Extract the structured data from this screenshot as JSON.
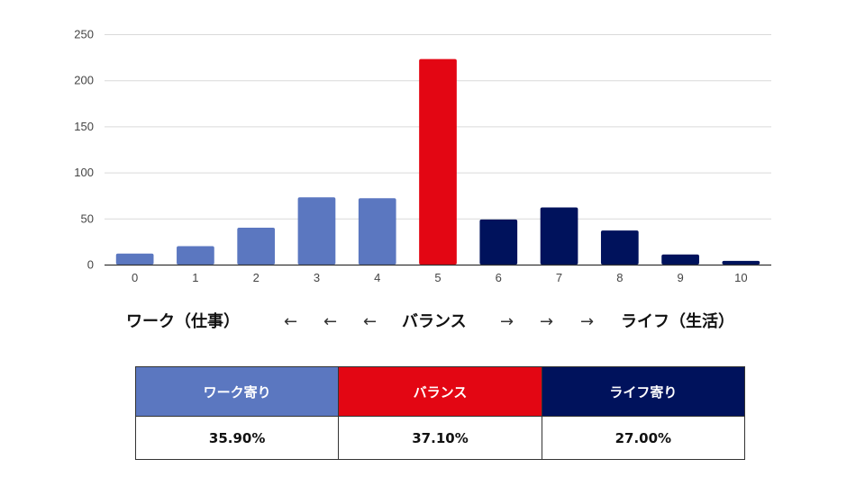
{
  "chart_data": {
    "type": "bar",
    "categories": [
      "0",
      "1",
      "2",
      "3",
      "4",
      "5",
      "6",
      "7",
      "8",
      "9",
      "10"
    ],
    "values": [
      12,
      20,
      40,
      73,
      72,
      223,
      49,
      62,
      37,
      11,
      4
    ],
    "bar_colors": [
      "#5b77c0",
      "#5b77c0",
      "#5b77c0",
      "#5b77c0",
      "#5b77c0",
      "#e30613",
      "#00125c",
      "#00125c",
      "#00125c",
      "#00125c",
      "#00125c"
    ],
    "yticks": [
      "0",
      "50",
      "100",
      "150",
      "200",
      "250"
    ],
    "ylim": [
      0,
      250
    ],
    "grid": true
  },
  "scale": {
    "left_label": "ワーク（仕事）",
    "arrow_left": "←",
    "center_label": "バランス",
    "arrow_right": "→",
    "right_label": "ライフ（生活）"
  },
  "summary": {
    "columns": [
      {
        "header": "ワーク寄り",
        "value": "35.90%",
        "color": "#5b77c0"
      },
      {
        "header": "バランス",
        "value": "37.10%",
        "color": "#e30613"
      },
      {
        "header": "ライフ寄り",
        "value": "27.00%",
        "color": "#00125c"
      }
    ]
  }
}
